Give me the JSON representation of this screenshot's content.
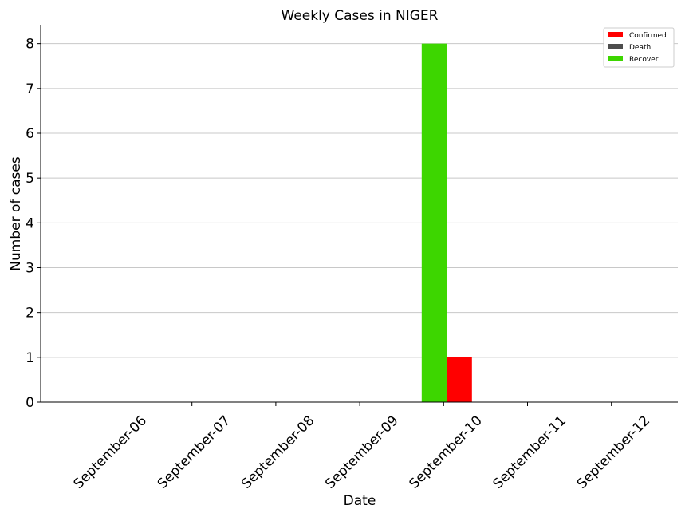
{
  "chart_data": {
    "type": "bar",
    "title": "Weekly Cases in NIGER",
    "xlabel": "Date",
    "ylabel": "Number of cases",
    "categories": [
      "September-06",
      "September-07",
      "September-08",
      "September-09",
      "September-10",
      "September-11",
      "September-12"
    ],
    "ylim": [
      0,
      8.35
    ],
    "yticks": [
      0,
      1,
      2,
      3,
      4,
      5,
      6,
      7,
      8
    ],
    "grid": "y",
    "legend_position": "top-right",
    "series": [
      {
        "name": "Confirmed",
        "color": "#ff0000",
        "values": [
          0,
          0,
          0,
          0,
          1,
          0,
          0
        ]
      },
      {
        "name": "Death",
        "color": "#4d4d4d",
        "values": [
          0,
          0,
          0,
          0,
          0,
          0,
          0
        ]
      },
      {
        "name": "Recover",
        "color": "#3dd600",
        "values": [
          0,
          0,
          0,
          0,
          8,
          0,
          0
        ]
      }
    ]
  }
}
